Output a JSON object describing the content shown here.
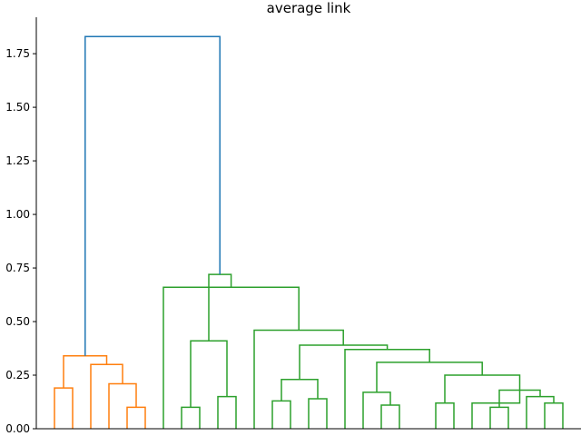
{
  "chart_data": {
    "type": "dendrogram",
    "title": "average link",
    "xlabel": "",
    "ylabel": "",
    "ylim": [
      0,
      1.92
    ],
    "grid": false,
    "y_ticks": [
      {
        "value": 0.0,
        "label": "0.00"
      },
      {
        "value": 0.25,
        "label": "0.25"
      },
      {
        "value": 0.5,
        "label": "0.50"
      },
      {
        "value": 0.75,
        "label": "0.75"
      },
      {
        "value": 1.0,
        "label": "1.00"
      },
      {
        "value": 1.25,
        "label": "1.25"
      },
      {
        "value": 1.5,
        "label": "1.50"
      },
      {
        "value": 1.75,
        "label": "1.75"
      }
    ],
    "leaf_count": 29,
    "colors": {
      "cluster_1": "#ff7f0e",
      "cluster_2": "#2ca02c",
      "root": "#1f77b4"
    },
    "links": [
      {
        "left": 1,
        "right": 2,
        "height": 0.19,
        "group": "cluster_1"
      },
      {
        "left": 5,
        "right": 6,
        "height": 0.1,
        "group": "cluster_1"
      },
      {
        "left": 4,
        "right": 5.5,
        "height": 0.21,
        "group": "cluster_1"
      },
      {
        "left": 3,
        "right": 4.75,
        "height": 0.3,
        "group": "cluster_1"
      },
      {
        "left": 1.5,
        "right": 3.875,
        "height": 0.34,
        "group": "cluster_1"
      },
      {
        "left": 8,
        "right": 9,
        "height": 0.1,
        "group": "cluster_2"
      },
      {
        "left": 10,
        "right": 11,
        "height": 0.15,
        "group": "cluster_2"
      },
      {
        "left": 8.5,
        "right": 10.5,
        "height": 0.41,
        "group": "cluster_2"
      },
      {
        "left": 13,
        "right": 14,
        "height": 0.13,
        "group": "cluster_2"
      },
      {
        "left": 15,
        "right": 16,
        "height": 0.14,
        "group": "cluster_2"
      },
      {
        "left": 13.5,
        "right": 15.5,
        "height": 0.23,
        "group": "cluster_2"
      },
      {
        "left": 19,
        "right": 20,
        "height": 0.11,
        "group": "cluster_2"
      },
      {
        "left": 18,
        "right": 19.5,
        "height": 0.17,
        "group": "cluster_2"
      },
      {
        "left": 25,
        "right": 26,
        "height": 0.1,
        "group": "cluster_2"
      },
      {
        "left": 28,
        "right": 29,
        "height": 0.12,
        "group": "cluster_2"
      },
      {
        "left": 27,
        "right": 28.5,
        "height": 0.15,
        "group": "cluster_2"
      },
      {
        "left": 25.5,
        "right": 27.75,
        "height": 0.18,
        "group": "cluster_2"
      },
      {
        "left": 24,
        "right": 26.625,
        "height": 0.12,
        "group": "cluster_2"
      },
      {
        "left": 22,
        "right": 23,
        "height": 0.12,
        "group": "cluster_2"
      },
      {
        "left": 22.5,
        "right": 26.625,
        "height": 0.25,
        "group": "cluster_2"
      },
      {
        "left": 18.75,
        "right": 24.56,
        "height": 0.31,
        "group": "cluster_2"
      },
      {
        "left": 17,
        "right": 21.66,
        "height": 0.37,
        "group": "cluster_2"
      },
      {
        "left": 14.5,
        "right": 19.33,
        "height": 0.39,
        "group": "cluster_2"
      },
      {
        "left": 12,
        "right": 16.91,
        "height": 0.46,
        "group": "cluster_2"
      },
      {
        "left": 7,
        "right": 14.46,
        "height": 0.66,
        "group": "cluster_2"
      },
      {
        "left": 9.5,
        "right": 10.73,
        "height": 0.72,
        "group": "cluster_2"
      },
      {
        "left": 2.69,
        "right": 10.11,
        "height": 1.83,
        "group": "root"
      }
    ]
  }
}
